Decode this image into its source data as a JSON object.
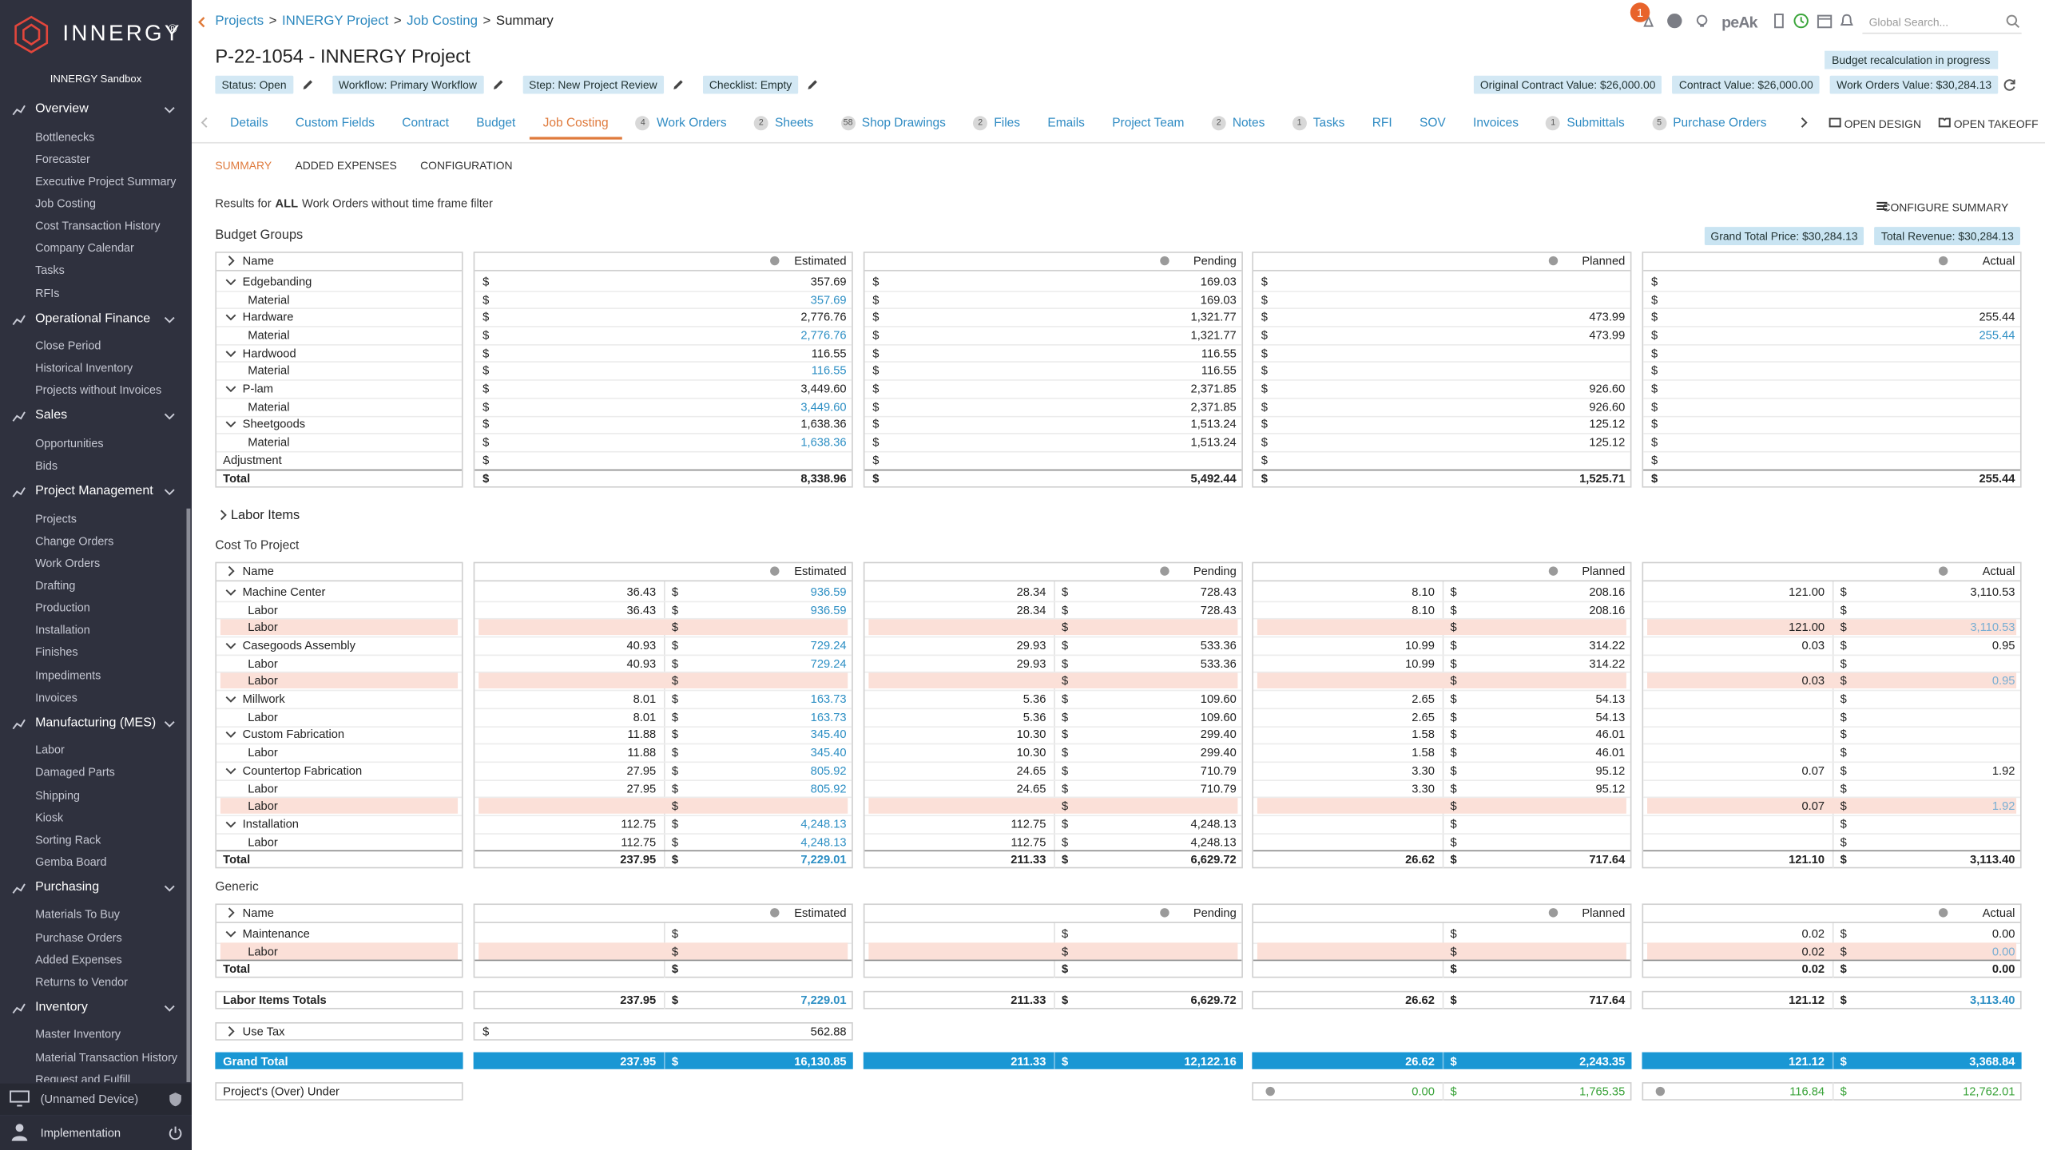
{
  "sidebar": {
    "brand": "INNERGY",
    "trademark": "®",
    "org": "INNERGY Sandbox",
    "sections": [
      {
        "title": "Overview",
        "items": [
          "Bottlenecks",
          "Forecaster",
          "Executive Project Summary",
          "Job Costing",
          "Cost Transaction History",
          "Company Calendar",
          "Tasks",
          "RFIs"
        ]
      },
      {
        "title": "Operational Finance",
        "items": [
          "Close Period",
          "Historical Inventory",
          "Projects without Invoices"
        ]
      },
      {
        "title": "Sales",
        "items": [
          "Opportunities",
          "Bids"
        ]
      },
      {
        "title": "Project Management",
        "items": [
          "Projects",
          "Change Orders",
          "Work Orders",
          "Drafting",
          "Production",
          "Installation",
          "Finishes",
          "Impediments",
          "Invoices"
        ]
      },
      {
        "title": "Manufacturing (MES)",
        "items": [
          "Labor",
          "Damaged Parts",
          "Shipping",
          "Kiosk",
          "Sorting Rack",
          "Gemba Board"
        ]
      },
      {
        "title": "Purchasing",
        "items": [
          "Materials To Buy",
          "Purchase Orders",
          "Added Expenses",
          "Returns to Vendor"
        ]
      },
      {
        "title": "Inventory",
        "items": [
          "Master Inventory",
          "Material Transaction History",
          "Request and Fulfill"
        ]
      }
    ],
    "device": "(Unnamed Device)",
    "user": "Implementation"
  },
  "header": {
    "breadcrumb": [
      "Projects",
      "INNERGY Project",
      "Job Costing",
      "Summary"
    ],
    "separator": ">",
    "notifications": "1",
    "brand": "peAk",
    "search_placeholder": "Global Search...",
    "title": "P-22-1054 - INNERGY Project",
    "chips": [
      "Status: Open",
      "Workflow: Primary Workflow",
      "Step: New Project Review",
      "Checklist: Empty"
    ],
    "notice": "Budget recalculation in progress",
    "values": [
      "Original Contract Value: $26,000.00",
      "Contract Value: $26,000.00",
      "Work Orders Value: $30,284.13"
    ]
  },
  "tabs": [
    {
      "label": "Details"
    },
    {
      "label": "Custom Fields"
    },
    {
      "label": "Contract"
    },
    {
      "label": "Budget"
    },
    {
      "label": "Job Costing",
      "active": true
    },
    {
      "label": "Work Orders",
      "count": "4"
    },
    {
      "label": "Sheets",
      "count": "2"
    },
    {
      "label": "Shop Drawings",
      "count": "58"
    },
    {
      "label": "Files",
      "count": "2"
    },
    {
      "label": "Emails"
    },
    {
      "label": "Project Team"
    },
    {
      "label": "Notes",
      "count": "2"
    },
    {
      "label": "Tasks",
      "count": "1"
    },
    {
      "label": "RFI"
    },
    {
      "label": "SOV"
    },
    {
      "label": "Invoices"
    },
    {
      "label": "Submittals",
      "count": "1"
    },
    {
      "label": "Purchase Orders",
      "count": "5"
    }
  ],
  "tab_actions": [
    "OPEN DESIGN",
    "OPEN TAKEOFF"
  ],
  "subtabs": [
    {
      "label": "SUMMARY",
      "active": true
    },
    {
      "label": "ADDED EXPENSES"
    },
    {
      "label": "CONFIGURATION"
    }
  ],
  "results": [
    "Results for",
    "ALL",
    "Work Orders without time frame filter"
  ],
  "configure": "CONFIGURE SUMMARY",
  "currency": "$",
  "name_header": "Name",
  "columns": [
    "Estimated",
    "Pending",
    "Planned",
    "Actual"
  ],
  "budget_groups": {
    "title": "Budget Groups",
    "badges": [
      "Grand Total Price: $30,284.13",
      "Total Revenue: $30,284.13"
    ],
    "rows": [
      {
        "label": "Edgebanding",
        "kind": "group",
        "values": [
          "357.69",
          "169.03",
          null,
          null
        ]
      },
      {
        "label": "Material",
        "kind": "child",
        "values": [
          "357.69",
          "169.03",
          null,
          null
        ]
      },
      {
        "label": "Hardware",
        "kind": "group",
        "values": [
          "2,776.76",
          "1,321.77",
          "473.99",
          "255.44"
        ]
      },
      {
        "label": "Material",
        "kind": "child",
        "values": [
          "2,776.76",
          "1,321.77",
          "473.99",
          "255.44"
        ]
      },
      {
        "label": "Hardwood",
        "kind": "group",
        "values": [
          "116.55",
          "116.55",
          null,
          null
        ]
      },
      {
        "label": "Material",
        "kind": "child",
        "values": [
          "116.55",
          "116.55",
          null,
          null
        ]
      },
      {
        "label": "P-lam",
        "kind": "group",
        "values": [
          "3,449.60",
          "2,371.85",
          "926.60",
          null
        ]
      },
      {
        "label": "Material",
        "kind": "child",
        "values": [
          "3,449.60",
          "2,371.85",
          "926.60",
          null
        ]
      },
      {
        "label": "Sheetgoods",
        "kind": "group",
        "values": [
          "1,638.36",
          "1,513.24",
          "125.12",
          null
        ]
      },
      {
        "label": "Material",
        "kind": "child",
        "values": [
          "1,638.36",
          "1,513.24",
          "125.12",
          null
        ]
      },
      {
        "label": "Adjustment",
        "kind": "plain",
        "values": [
          null,
          null,
          null,
          null
        ]
      },
      {
        "label": "Total",
        "kind": "total",
        "values": [
          "8,338.96",
          "5,492.44",
          "1,525.71",
          "255.44"
        ]
      }
    ]
  },
  "labor_items": "Labor Items",
  "cost_to_project": {
    "title": "Cost To Project",
    "rows": [
      {
        "label": "Machine Center",
        "kind": "group",
        "values": [
          [
            "36.43",
            "936.59"
          ],
          [
            "28.34",
            "728.43"
          ],
          [
            "8.10",
            "208.16"
          ],
          [
            "121.00",
            "3,110.53"
          ]
        ]
      },
      {
        "label": "Labor",
        "kind": "child",
        "values": [
          [
            "36.43",
            "936.59"
          ],
          [
            "28.34",
            "728.43"
          ],
          [
            "8.10",
            "208.16"
          ],
          [
            null,
            null
          ]
        ]
      },
      {
        "label": "Labor",
        "kind": "pink",
        "values": [
          [
            null,
            null
          ],
          [
            null,
            null
          ],
          [
            null,
            null
          ],
          [
            "121.00",
            "3,110.53"
          ]
        ]
      },
      {
        "label": "Casegoods Assembly",
        "kind": "group",
        "values": [
          [
            "40.93",
            "729.24"
          ],
          [
            "29.93",
            "533.36"
          ],
          [
            "10.99",
            "314.22"
          ],
          [
            "0.03",
            "0.95"
          ]
        ]
      },
      {
        "label": "Labor",
        "kind": "child",
        "values": [
          [
            "40.93",
            "729.24"
          ],
          [
            "29.93",
            "533.36"
          ],
          [
            "10.99",
            "314.22"
          ],
          [
            null,
            null
          ]
        ]
      },
      {
        "label": "Labor",
        "kind": "pink",
        "values": [
          [
            null,
            null
          ],
          [
            null,
            null
          ],
          [
            null,
            null
          ],
          [
            "0.03",
            "0.95"
          ]
        ]
      },
      {
        "label": "Millwork",
        "kind": "group",
        "values": [
          [
            "8.01",
            "163.73"
          ],
          [
            "5.36",
            "109.60"
          ],
          [
            "2.65",
            "54.13"
          ],
          [
            null,
            null
          ]
        ]
      },
      {
        "label": "Labor",
        "kind": "child",
        "values": [
          [
            "8.01",
            "163.73"
          ],
          [
            "5.36",
            "109.60"
          ],
          [
            "2.65",
            "54.13"
          ],
          [
            null,
            null
          ]
        ]
      },
      {
        "label": "Custom Fabrication",
        "kind": "group",
        "values": [
          [
            "11.88",
            "345.40"
          ],
          [
            "10.30",
            "299.40"
          ],
          [
            "1.58",
            "46.01"
          ],
          [
            null,
            null
          ]
        ]
      },
      {
        "label": "Labor",
        "kind": "child",
        "values": [
          [
            "11.88",
            "345.40"
          ],
          [
            "10.30",
            "299.40"
          ],
          [
            "1.58",
            "46.01"
          ],
          [
            null,
            null
          ]
        ]
      },
      {
        "label": "Countertop Fabrication",
        "kind": "group",
        "values": [
          [
            "27.95",
            "805.92"
          ],
          [
            "24.65",
            "710.79"
          ],
          [
            "3.30",
            "95.12"
          ],
          [
            "0.07",
            "1.92"
          ]
        ]
      },
      {
        "label": "Labor",
        "kind": "child",
        "values": [
          [
            "27.95",
            "805.92"
          ],
          [
            "24.65",
            "710.79"
          ],
          [
            "3.30",
            "95.12"
          ],
          [
            null,
            null
          ]
        ]
      },
      {
        "label": "Labor",
        "kind": "pink",
        "values": [
          [
            null,
            null
          ],
          [
            null,
            null
          ],
          [
            null,
            null
          ],
          [
            "0.07",
            "1.92"
          ]
        ]
      },
      {
        "label": "Installation",
        "kind": "group",
        "values": [
          [
            "112.75",
            "4,248.13"
          ],
          [
            "112.75",
            "4,248.13"
          ],
          [
            null,
            null
          ],
          [
            null,
            null
          ]
        ]
      },
      {
        "label": "Labor",
        "kind": "child",
        "values": [
          [
            "112.75",
            "4,248.13"
          ],
          [
            "112.75",
            "4,248.13"
          ],
          [
            null,
            null
          ],
          [
            null,
            null
          ]
        ]
      },
      {
        "label": "Total",
        "kind": "total",
        "values": [
          [
            "237.95",
            "7,229.01"
          ],
          [
            "211.33",
            "6,629.72"
          ],
          [
            "26.62",
            "717.64"
          ],
          [
            "121.10",
            "3,113.40"
          ]
        ]
      }
    ]
  },
  "generic": {
    "title": "Generic",
    "rows": [
      {
        "label": "Maintenance",
        "kind": "group",
        "values": [
          [
            null,
            null
          ],
          [
            null,
            null
          ],
          [
            null,
            null
          ],
          [
            "0.02",
            "0.00"
          ]
        ]
      },
      {
        "label": "Labor",
        "kind": "pink",
        "values": [
          [
            null,
            null
          ],
          [
            null,
            null
          ],
          [
            null,
            null
          ],
          [
            "0.02",
            "0.00"
          ]
        ]
      },
      {
        "label": "Total",
        "kind": "total",
        "values": [
          [
            null,
            null
          ],
          [
            null,
            null
          ],
          [
            null,
            null
          ],
          [
            "0.02",
            "0.00"
          ]
        ]
      }
    ]
  },
  "labor_items_totals": {
    "label": "Labor Items Totals",
    "values": [
      [
        "237.95",
        "7,229.01"
      ],
      [
        "211.33",
        "6,629.72"
      ],
      [
        "26.62",
        "717.64"
      ],
      [
        "121.12",
        "3,113.40"
      ]
    ]
  },
  "use_tax": {
    "label": "Use Tax",
    "value": "562.88"
  },
  "grand_total": {
    "label": "Grand Total",
    "values": [
      [
        "237.95",
        "16,130.85"
      ],
      [
        "211.33",
        "12,122.16"
      ],
      [
        "26.62",
        "2,243.35"
      ],
      [
        "121.12",
        "3,368.84"
      ]
    ]
  },
  "over_under": {
    "label": "Project's (Over) Under",
    "values": [
      null,
      null,
      [
        "0.00",
        "1,765.35"
      ],
      [
        "116.84",
        "12,762.01"
      ]
    ]
  }
}
